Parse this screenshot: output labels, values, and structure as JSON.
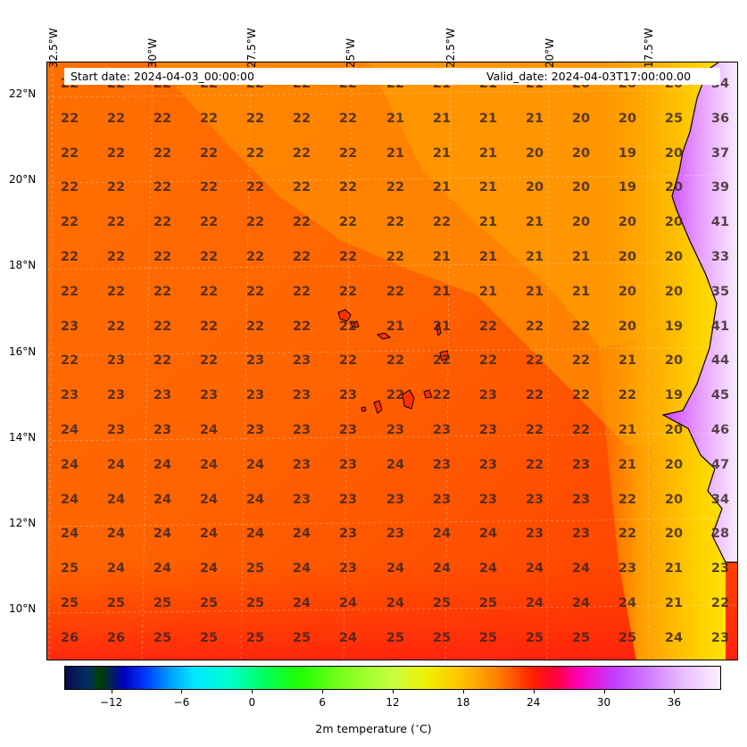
{
  "header": {
    "start_date": "Start date: 2024-04-03_00:00:00",
    "valid_date": "Valid_date: 2024-04-03T17:00:00.00"
  },
  "lon_labels": [
    "32.5°W",
    "30°W",
    "27.5°W",
    "25°W",
    "22.5°W",
    "20°W",
    "17.5°W"
  ],
  "lat_labels": [
    "22°N",
    "20°N",
    "18°N",
    "16°N",
    "14°N",
    "12°N",
    "10°N"
  ],
  "grid_values": [
    [
      "22",
      "22",
      "22",
      "22",
      "22",
      "22",
      "22",
      "22",
      "21",
      "21",
      "21",
      "20",
      "20",
      "20",
      "34"
    ],
    [
      "22",
      "22",
      "22",
      "22",
      "22",
      "22",
      "22",
      "21",
      "21",
      "21",
      "21",
      "20",
      "20",
      "25",
      "36"
    ],
    [
      "22",
      "22",
      "22",
      "22",
      "22",
      "22",
      "22",
      "21",
      "21",
      "21",
      "20",
      "20",
      "19",
      "20",
      "37"
    ],
    [
      "22",
      "22",
      "22",
      "22",
      "22",
      "22",
      "22",
      "22",
      "21",
      "21",
      "20",
      "20",
      "19",
      "20",
      "39"
    ],
    [
      "22",
      "22",
      "22",
      "22",
      "22",
      "22",
      "22",
      "22",
      "22",
      "21",
      "21",
      "20",
      "20",
      "20",
      "41"
    ],
    [
      "22",
      "22",
      "22",
      "22",
      "22",
      "22",
      "22",
      "22",
      "21",
      "21",
      "21",
      "21",
      "20",
      "20",
      "33"
    ],
    [
      "22",
      "22",
      "22",
      "22",
      "22",
      "22",
      "22",
      "22",
      "21",
      "21",
      "21",
      "21",
      "20",
      "20",
      "35"
    ],
    [
      "23",
      "22",
      "22",
      "22",
      "22",
      "22",
      "22",
      "21",
      "21",
      "22",
      "22",
      "22",
      "20",
      "19",
      "41"
    ],
    [
      "22",
      "23",
      "22",
      "22",
      "23",
      "23",
      "22",
      "22",
      "22",
      "22",
      "22",
      "22",
      "21",
      "20",
      "44"
    ],
    [
      "23",
      "23",
      "23",
      "23",
      "23",
      "23",
      "23",
      "22",
      "22",
      "23",
      "22",
      "22",
      "22",
      "19",
      "45"
    ],
    [
      "24",
      "23",
      "23",
      "24",
      "23",
      "23",
      "23",
      "23",
      "23",
      "23",
      "22",
      "22",
      "21",
      "20",
      "46"
    ],
    [
      "24",
      "24",
      "24",
      "24",
      "24",
      "23",
      "23",
      "24",
      "23",
      "23",
      "22",
      "23",
      "21",
      "20",
      "47"
    ],
    [
      "24",
      "24",
      "24",
      "24",
      "24",
      "23",
      "23",
      "23",
      "23",
      "23",
      "23",
      "23",
      "22",
      "20",
      "34"
    ],
    [
      "24",
      "24",
      "24",
      "24",
      "24",
      "24",
      "23",
      "23",
      "24",
      "24",
      "23",
      "23",
      "22",
      "20",
      "28"
    ],
    [
      "25",
      "24",
      "24",
      "24",
      "25",
      "24",
      "23",
      "24",
      "24",
      "24",
      "24",
      "24",
      "23",
      "21",
      "23"
    ],
    [
      "25",
      "25",
      "25",
      "25",
      "25",
      "24",
      "24",
      "24",
      "25",
      "25",
      "24",
      "24",
      "24",
      "21",
      "22"
    ],
    [
      "26",
      "26",
      "25",
      "25",
      "25",
      "25",
      "24",
      "25",
      "25",
      "25",
      "25",
      "25",
      "25",
      "24",
      "23"
    ]
  ],
  "colorbar": {
    "ticks": [
      "−12",
      "−6",
      "0",
      "6",
      "12",
      "18",
      "24",
      "30",
      "36"
    ],
    "tick_values": [
      -12,
      -6,
      0,
      6,
      12,
      18,
      24,
      30,
      36
    ],
    "range": [
      -16,
      40
    ],
    "title": "2m temperature ($^\\circ$C)"
  },
  "colors": {
    "ocean_warm": "#ff3c00",
    "ocean_mid": "#ff6a00",
    "ocean_cool": "#ff9900",
    "coast_yellow": "#ffd400",
    "land_hot": "#e060ff",
    "land_very_hot": "#f5e6ff"
  }
}
